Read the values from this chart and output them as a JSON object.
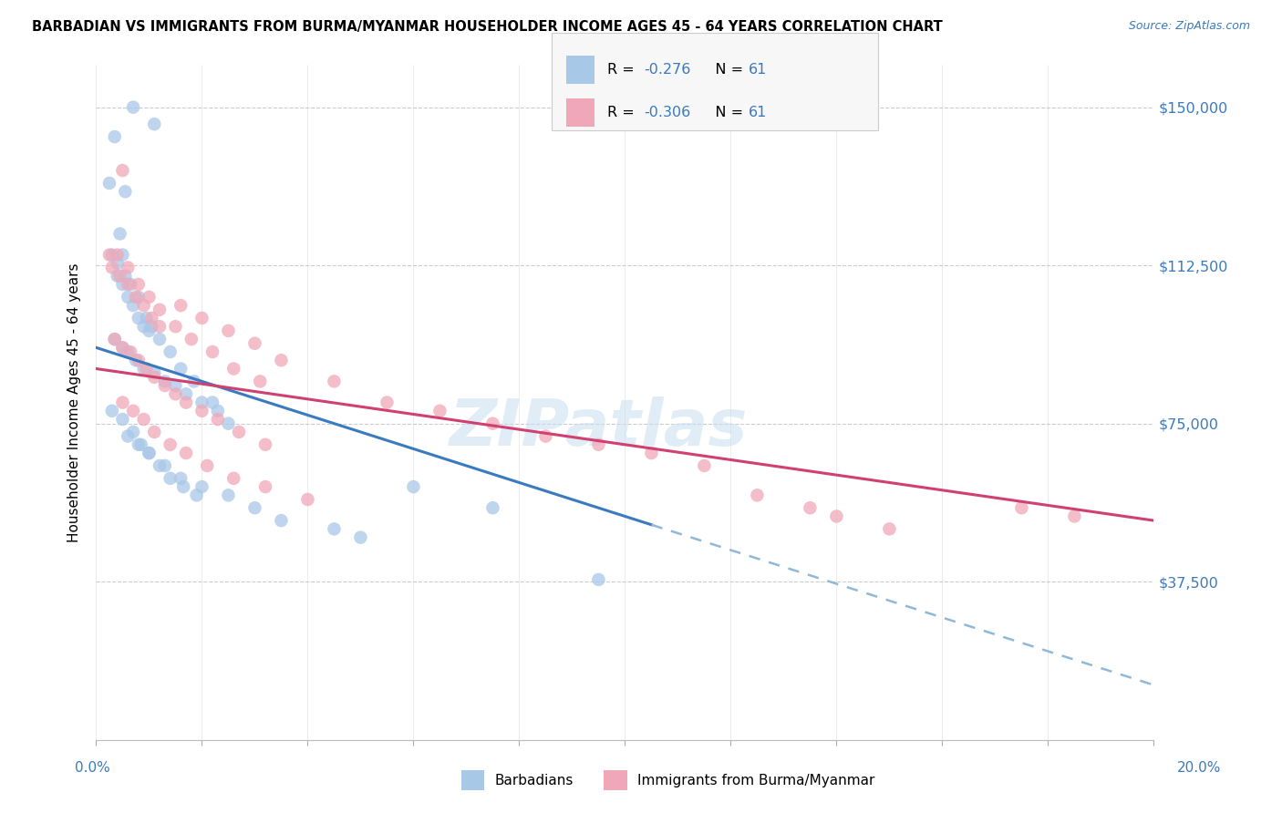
{
  "title": "BARBADIAN VS IMMIGRANTS FROM BURMA/MYANMAR HOUSEHOLDER INCOME AGES 45 - 64 YEARS CORRELATION CHART",
  "source": "Source: ZipAtlas.com",
  "ylabel": "Householder Income Ages 45 - 64 years",
  "yticks": [
    0,
    37500,
    75000,
    112500,
    150000
  ],
  "ytick_labels": [
    "",
    "$37,500",
    "$75,000",
    "$112,500",
    "$150,000"
  ],
  "xmin": 0.0,
  "xmax": 20.0,
  "ymin": 0,
  "ymax": 160000,
  "barbadian_color": "#a8c8e8",
  "burma_color": "#f0a8b8",
  "trend_blue": "#3a7abf",
  "trend_pink": "#d04070",
  "trend_dashed_color": "#90b8d8",
  "R_barbadian": -0.276,
  "R_burma": -0.306,
  "N_barbadian": 61,
  "N_burma": 61,
  "legend_label_1": "Barbadians",
  "legend_label_2": "Immigrants from Burma/Myanmar",
  "watermark": "ZIPatlas",
  "blue_line_x0": 0.0,
  "blue_line_x1": 10.5,
  "blue_line_y0": 93000,
  "blue_line_y1": 51000,
  "dash_line_x0": 10.5,
  "dash_line_x1": 20.0,
  "dash_line_y0": 51000,
  "dash_line_y1": 13000,
  "pink_line_x0": 0.0,
  "pink_line_x1": 20.0,
  "pink_line_y0": 88000,
  "pink_line_y1": 52000,
  "barbadian_x": [
    0.35,
    0.7,
    0.55,
    1.1,
    0.25,
    0.45,
    0.5,
    0.3,
    0.4,
    0.5,
    0.6,
    0.7,
    0.8,
    0.9,
    1.0,
    0.35,
    0.5,
    0.6,
    0.75,
    0.9,
    1.1,
    1.3,
    1.5,
    1.7,
    2.0,
    2.3,
    0.4,
    0.55,
    0.65,
    0.8,
    0.95,
    1.05,
    1.2,
    1.4,
    1.6,
    1.85,
    2.2,
    0.3,
    0.5,
    0.7,
    0.85,
    1.0,
    1.2,
    1.4,
    1.65,
    1.9,
    2.5,
    0.6,
    0.8,
    1.0,
    1.3,
    1.6,
    2.0,
    2.5,
    3.0,
    3.5,
    4.5,
    5.0,
    6.0,
    7.5,
    9.5
  ],
  "barbadian_y": [
    143000,
    150000,
    130000,
    146000,
    132000,
    120000,
    115000,
    115000,
    110000,
    108000,
    105000,
    103000,
    100000,
    98000,
    97000,
    95000,
    93000,
    92000,
    90000,
    88000,
    87000,
    85000,
    84000,
    82000,
    80000,
    78000,
    113000,
    110000,
    108000,
    105000,
    100000,
    98000,
    95000,
    92000,
    88000,
    85000,
    80000,
    78000,
    76000,
    73000,
    70000,
    68000,
    65000,
    62000,
    60000,
    58000,
    75000,
    72000,
    70000,
    68000,
    65000,
    62000,
    60000,
    58000,
    55000,
    52000,
    50000,
    48000,
    60000,
    55000,
    38000
  ],
  "burma_x": [
    0.25,
    0.5,
    0.3,
    0.45,
    0.6,
    0.75,
    0.9,
    1.05,
    1.2,
    0.35,
    0.5,
    0.65,
    0.8,
    0.95,
    1.1,
    1.3,
    1.5,
    1.7,
    2.0,
    2.3,
    2.7,
    3.2,
    0.4,
    0.6,
    0.8,
    1.0,
    1.2,
    1.5,
    1.8,
    2.2,
    2.6,
    3.1,
    0.5,
    0.7,
    0.9,
    1.1,
    1.4,
    1.7,
    2.1,
    2.6,
    3.2,
    4.0,
    1.6,
    2.0,
    2.5,
    3.0,
    3.5,
    4.5,
    5.5,
    6.5,
    7.5,
    8.5,
    9.5,
    10.5,
    11.5,
    12.5,
    13.5,
    14.0,
    15.0,
    17.5,
    18.5
  ],
  "burma_y": [
    115000,
    135000,
    112000,
    110000,
    108000,
    105000,
    103000,
    100000,
    98000,
    95000,
    93000,
    92000,
    90000,
    88000,
    86000,
    84000,
    82000,
    80000,
    78000,
    76000,
    73000,
    70000,
    115000,
    112000,
    108000,
    105000,
    102000,
    98000,
    95000,
    92000,
    88000,
    85000,
    80000,
    78000,
    76000,
    73000,
    70000,
    68000,
    65000,
    62000,
    60000,
    57000,
    103000,
    100000,
    97000,
    94000,
    90000,
    85000,
    80000,
    78000,
    75000,
    72000,
    70000,
    68000,
    65000,
    58000,
    55000,
    53000,
    50000,
    55000,
    53000
  ]
}
